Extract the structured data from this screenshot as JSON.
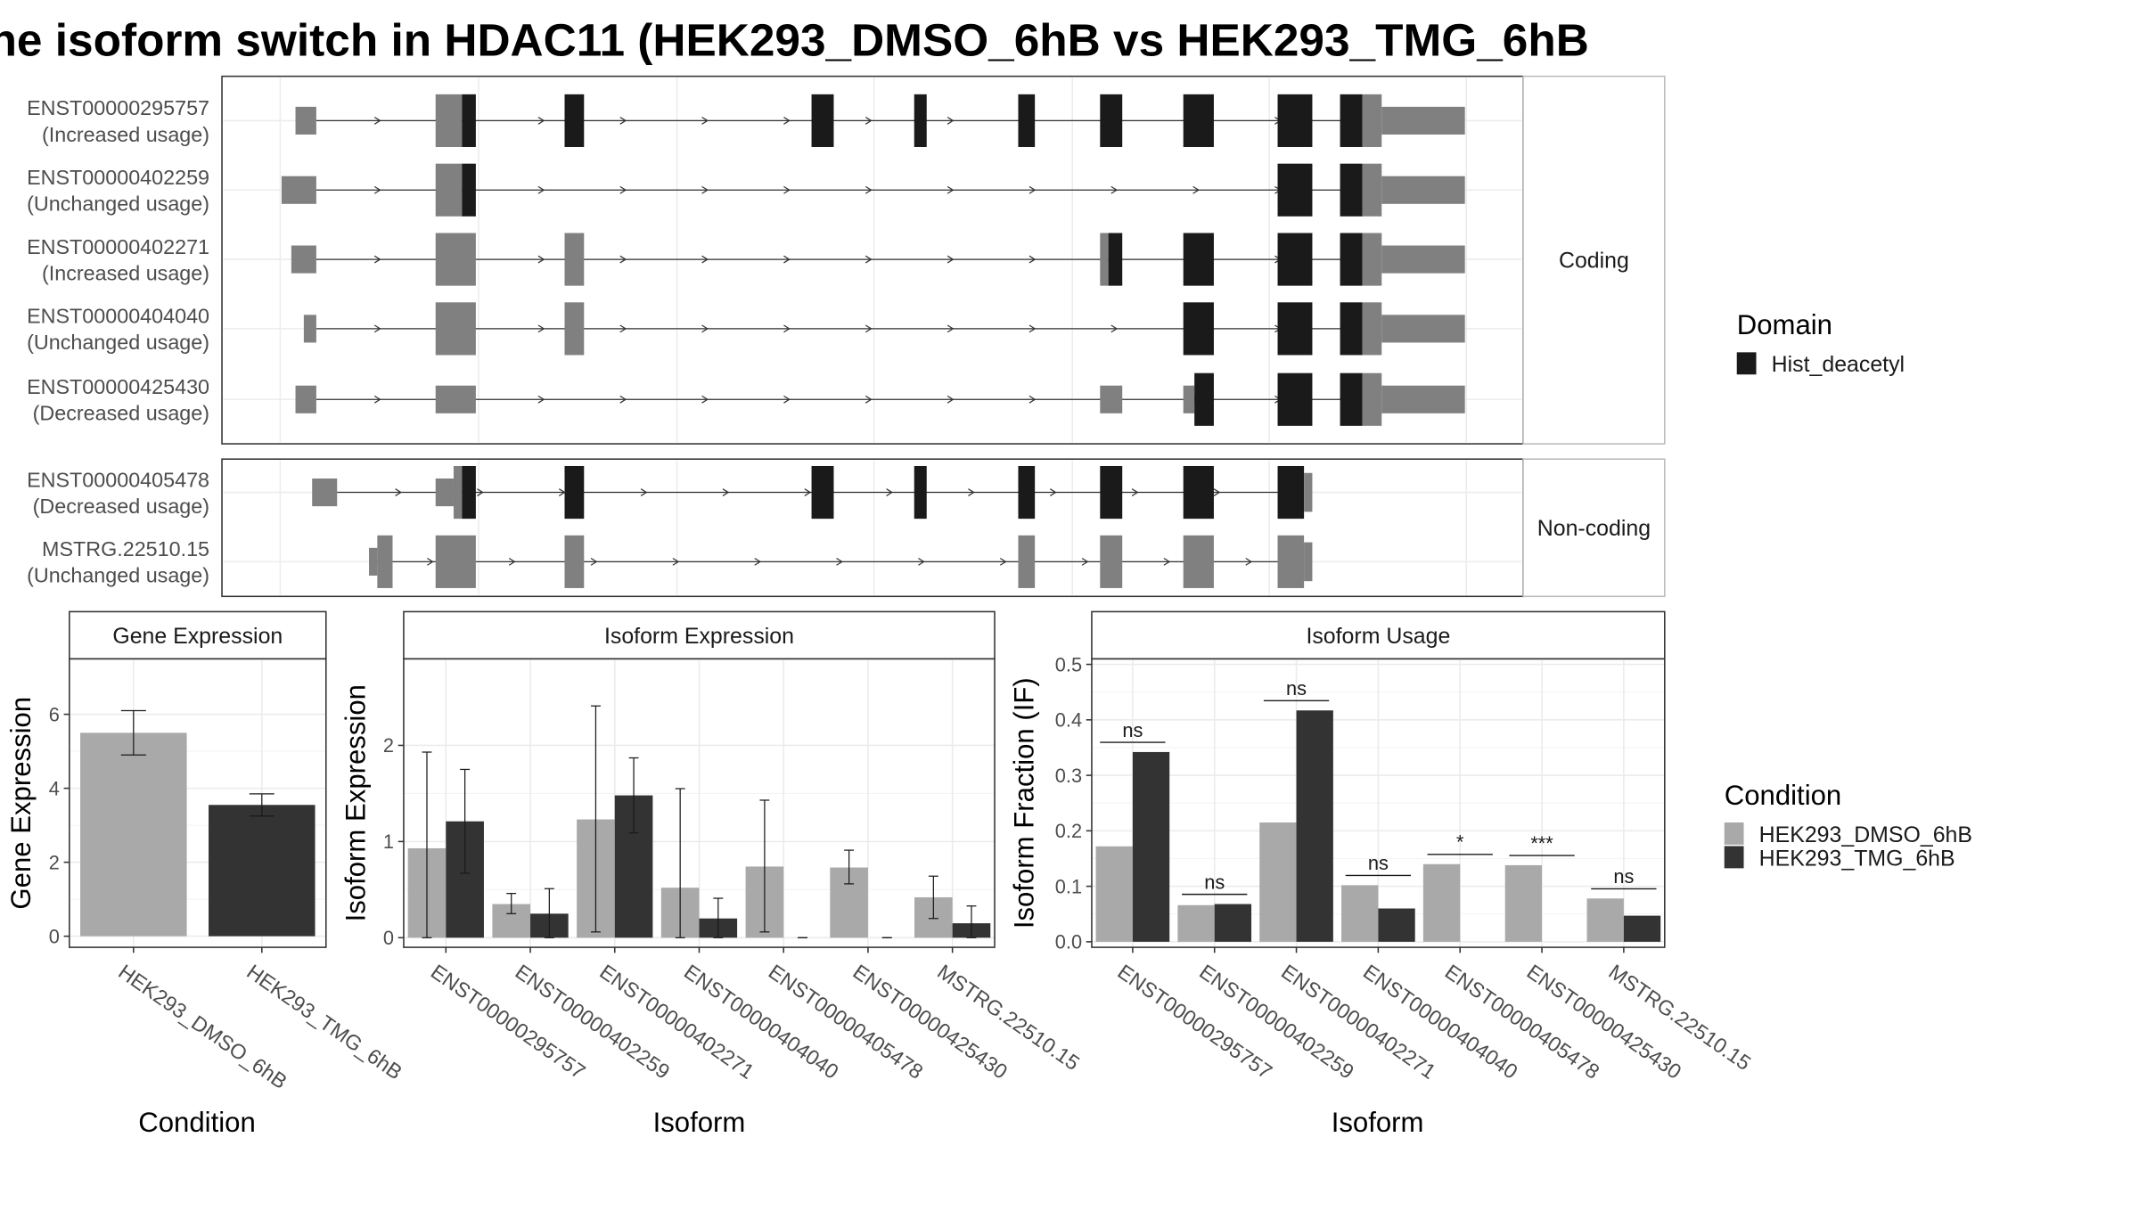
{
  "title": "he isoform switch in HDAC11 (HEK293_DMSO_6hB vs HEK293_TMG_6hB",
  "transcript_panel": {
    "groups": [
      "Coding",
      "Non-coding"
    ],
    "transcripts": [
      {
        "id": "ENST00000295757",
        "usage": "(Increased usage)",
        "group": "Coding"
      },
      {
        "id": "ENST00000402259",
        "usage": "(Unchanged usage)",
        "group": "Coding"
      },
      {
        "id": "ENST00000402271",
        "usage": "(Increased usage)",
        "group": "Coding"
      },
      {
        "id": "ENST00000404040",
        "usage": "(Unchanged usage)",
        "group": "Coding"
      },
      {
        "id": "ENST00000425430",
        "usage": "(Decreased usage)",
        "group": "Coding"
      },
      {
        "id": "ENST00000405478",
        "usage": "(Decreased usage)",
        "group": "Non-coding"
      },
      {
        "id": "MSTRG.22510.15",
        "usage": "(Unchanged usage)",
        "group": "Non-coding"
      }
    ]
  },
  "legends": {
    "domain_title": "Domain",
    "domain_items": [
      {
        "label": "Hist_deacetyl",
        "color": "#1a1a1a"
      }
    ],
    "condition_title": "Condition",
    "condition_items": [
      {
        "label": "HEK293_DMSO_6hB",
        "color": "#a9a9a9"
      },
      {
        "label": "HEK293_TMG_6hB",
        "color": "#333333"
      }
    ]
  },
  "chart_data": [
    {
      "type": "bar",
      "title": "Gene Expression",
      "xlabel": "Condition",
      "ylabel": "Gene Expression",
      "categories": [
        "HEK293_DMSO_6hB",
        "HEK293_TMG_6hB"
      ],
      "values": [
        5.5,
        3.55
      ],
      "error_low": [
        4.9,
        3.25
      ],
      "error_high": [
        6.1,
        3.85
      ],
      "colors": [
        "#a9a9a9",
        "#333333"
      ],
      "ylim": [
        -0.3,
        7.5
      ],
      "yticks": [
        0,
        2,
        4,
        6
      ]
    },
    {
      "type": "bar",
      "title": "Isoform Expression",
      "xlabel": "Isoform",
      "ylabel": "Isoform Expression",
      "categories": [
        "ENST00000295757",
        "ENST00000402259",
        "ENST00000402271",
        "ENST00000404040",
        "ENST00000405478",
        "ENST00000425430",
        "MSTRG.22510.15"
      ],
      "series": [
        {
          "name": "HEK293_DMSO_6hB",
          "color": "#a9a9a9",
          "values": [
            0.93,
            0.35,
            1.23,
            0.52,
            0.74,
            0.73,
            0.42
          ],
          "error_low": [
            0.0,
            0.25,
            0.06,
            0.0,
            0.06,
            0.56,
            0.2
          ],
          "error_high": [
            1.93,
            0.46,
            2.41,
            1.55,
            1.43,
            0.91,
            0.64
          ]
        },
        {
          "name": "HEK293_TMG_6hB",
          "color": "#333333",
          "values": [
            1.21,
            0.25,
            1.48,
            0.2,
            0.0,
            0.0,
            0.15
          ],
          "error_low": [
            0.67,
            0.0,
            1.09,
            0.0,
            0.0,
            0.0,
            0.0
          ],
          "error_high": [
            1.75,
            0.51,
            1.87,
            0.41,
            0.0,
            0.0,
            0.33
          ]
        }
      ],
      "ylim": [
        -0.1,
        2.9
      ],
      "yticks": [
        0,
        1,
        2
      ]
    },
    {
      "type": "bar",
      "title": "Isoform Usage",
      "xlabel": "Isoform",
      "ylabel": "Isoform Fraction (IF)",
      "categories": [
        "ENST00000295757",
        "ENST00000402259",
        "ENST00000402271",
        "ENST00000404040",
        "ENST00000405478",
        "ENST00000425430",
        "MSTRG.22510.15"
      ],
      "series": [
        {
          "name": "HEK293_DMSO_6hB",
          "color": "#a9a9a9",
          "values": [
            0.172,
            0.066,
            0.215,
            0.102,
            0.14,
            0.138,
            0.078
          ]
        },
        {
          "name": "HEK293_TMG_6hB",
          "color": "#333333",
          "values": [
            0.342,
            0.068,
            0.417,
            0.06,
            0.0,
            0.0,
            0.047
          ]
        }
      ],
      "significance": [
        "ns",
        "ns",
        "ns",
        "ns",
        "*",
        "***",
        "ns"
      ],
      "ylim": [
        -0.01,
        0.51
      ],
      "yticks": [
        0.0,
        0.1,
        0.2,
        0.3,
        0.4,
        0.5
      ]
    }
  ]
}
